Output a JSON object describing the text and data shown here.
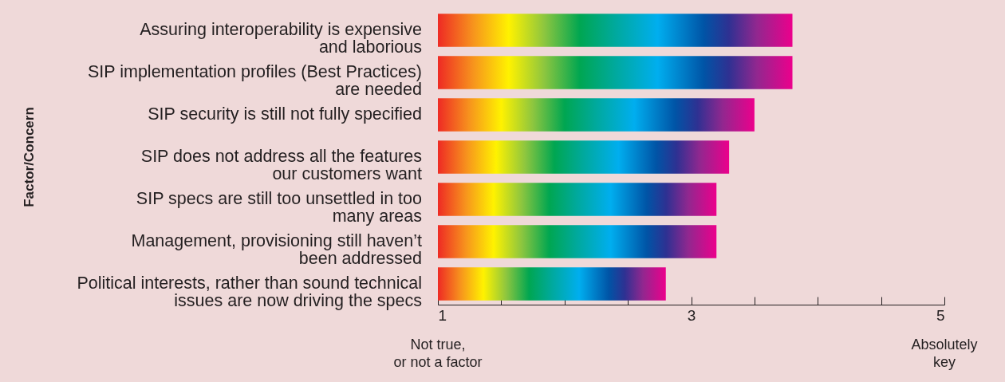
{
  "chart_data": {
    "type": "bar",
    "orientation": "horizontal",
    "categories": [
      "Assuring interoperability is expensive\nand laborious",
      "SIP implementation profiles (Best Practices)\nare needed",
      "SIP security is still not fully specified",
      "SIP does not address all the features\nour customers want",
      "SIP specs are still too unsettled in too\nmany areas",
      "Management, provisioning still haven’t\nbeen addressed",
      "Political interests, rather than sound technical\nissues are now driving the specs"
    ],
    "values": [
      3.8,
      3.8,
      3.5,
      3.3,
      3.2,
      3.2,
      2.8
    ],
    "xlim": [
      1,
      5
    ],
    "xticks": [
      1,
      {
        "value": 1.5,
        "label": null
      },
      {
        "value": 2,
        "label": null
      },
      {
        "value": 2.5,
        "label": null
      },
      3,
      {
        "value": 3.5,
        "label": null
      },
      {
        "value": 4,
        "label": null
      },
      {
        "value": 4.5,
        "label": null
      },
      5
    ],
    "annotations": [
      "Not true,\nor not a factor",
      "Absolutely\nkey",
      "Factor/Concern"
    ],
    "grid": false
  }
}
